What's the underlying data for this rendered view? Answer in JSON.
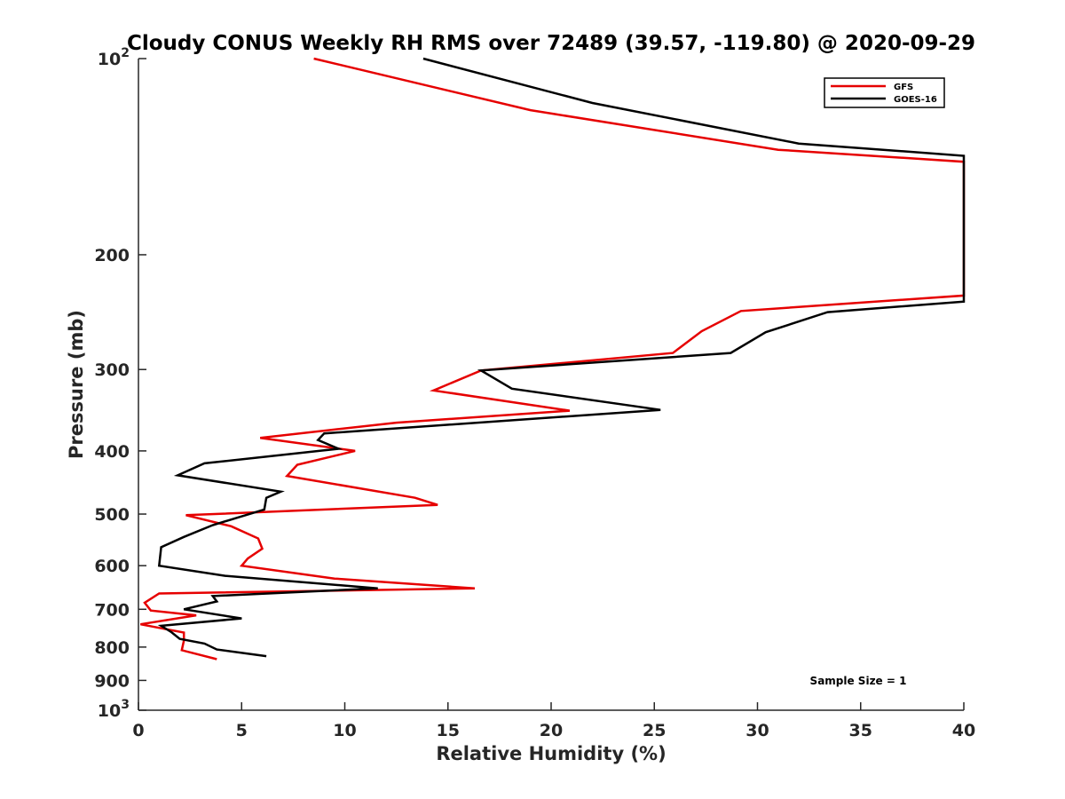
{
  "chart_data": {
    "type": "line",
    "title": "Cloudy CONUS Weekly RH RMS over 72489 (39.57, -119.80) @ 2020-09-29",
    "xlabel": "Relative Humidity (%)",
    "ylabel": "Pressure (mb)",
    "xlim": [
      0,
      40
    ],
    "ylim": [
      100,
      1000
    ],
    "y_scale": "log",
    "y_direction": "reversed",
    "x_ticks": [
      "0",
      "5",
      "10",
      "15",
      "20",
      "25",
      "30",
      "35",
      "40"
    ],
    "y_ticks": [
      {
        "value": 100,
        "base": "10",
        "exp": "2"
      },
      {
        "value": 200,
        "label": "200"
      },
      {
        "value": 300,
        "label": "300"
      },
      {
        "value": 400,
        "label": "400"
      },
      {
        "value": 500,
        "label": "500"
      },
      {
        "value": 600,
        "label": "600"
      },
      {
        "value": 700,
        "label": "700"
      },
      {
        "value": 800,
        "label": "800"
      },
      {
        "value": 900,
        "label": "900"
      },
      {
        "value": 1000,
        "base": "10",
        "exp": "3"
      }
    ],
    "grid": false,
    "legend_position": "top-right",
    "annotation": "Sample Size = 1",
    "series": [
      {
        "name": "GFS",
        "color": "#e60000",
        "points": [
          [
            8.5,
            100
          ],
          [
            19.0,
            120
          ],
          [
            31.0,
            138
          ],
          [
            40.0,
            144
          ],
          [
            40.0,
            231
          ],
          [
            29.2,
            244
          ],
          [
            27.3,
            262
          ],
          [
            25.9,
            283
          ],
          [
            16.6,
            301
          ],
          [
            14.3,
            323
          ],
          [
            20.9,
            347
          ],
          [
            12.5,
            362
          ],
          [
            5.9,
            382
          ],
          [
            10.5,
            400
          ],
          [
            7.7,
            420
          ],
          [
            7.2,
            437
          ],
          [
            13.4,
            472
          ],
          [
            14.5,
            484
          ],
          [
            2.3,
            502
          ],
          [
            4.5,
            522
          ],
          [
            5.8,
            545
          ],
          [
            6.0,
            565
          ],
          [
            5.3,
            585
          ],
          [
            5.0,
            600
          ],
          [
            9.5,
            628
          ],
          [
            16.3,
            650
          ],
          [
            1.0,
            662
          ],
          [
            0.3,
            684
          ],
          [
            0.6,
            703
          ],
          [
            2.8,
            715
          ],
          [
            0.1,
            738
          ],
          [
            2.2,
            760
          ],
          [
            2.2,
            782
          ],
          [
            2.1,
            809
          ],
          [
            3.8,
            835
          ]
        ]
      },
      {
        "name": "GOES-16",
        "color": "#000000",
        "points": [
          [
            13.8,
            100
          ],
          [
            22.0,
            117
          ],
          [
            32.0,
            135
          ],
          [
            40.0,
            141
          ],
          [
            40.0,
            236
          ],
          [
            33.4,
            245
          ],
          [
            30.4,
            263
          ],
          [
            28.7,
            283
          ],
          [
            16.6,
            301
          ],
          [
            18.1,
            321
          ],
          [
            25.3,
            346
          ],
          [
            9.0,
            376
          ],
          [
            8.7,
            385
          ],
          [
            9.7,
            397
          ],
          [
            3.2,
            418
          ],
          [
            1.9,
            436
          ],
          [
            6.9,
            462
          ],
          [
            6.2,
            472
          ],
          [
            6.1,
            492
          ],
          [
            3.6,
            520
          ],
          [
            2.2,
            542
          ],
          [
            1.1,
            562
          ],
          [
            1.0,
            600
          ],
          [
            4.2,
            622
          ],
          [
            11.6,
            650
          ],
          [
            3.6,
            668
          ],
          [
            3.8,
            681
          ],
          [
            2.2,
            700
          ],
          [
            5.0,
            723
          ],
          [
            1.1,
            742
          ],
          [
            1.6,
            759
          ],
          [
            2.0,
            777
          ],
          [
            3.2,
            790
          ],
          [
            3.8,
            807
          ],
          [
            6.2,
            826
          ]
        ]
      }
    ]
  }
}
